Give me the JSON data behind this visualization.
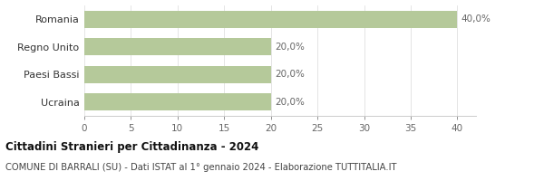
{
  "categories": [
    "Ucraina",
    "Paesi Bassi",
    "Regno Unito",
    "Romania"
  ],
  "values": [
    20.0,
    20.0,
    20.0,
    40.0
  ],
  "labels": [
    "20,0%",
    "20,0%",
    "20,0%",
    "40,0%"
  ],
  "bar_color": "#b5c99a",
  "background_color": "#ffffff",
  "xlim": [
    0,
    42
  ],
  "xticks": [
    0,
    5,
    10,
    15,
    20,
    25,
    30,
    35,
    40
  ],
  "title": "Cittadini Stranieri per Cittadinanza - 2024",
  "subtitle": "COMUNE DI BARRALI (SU) - Dati ISTAT al 1° gennaio 2024 - Elaborazione TUTTITALIA.IT",
  "title_fontsize": 8.5,
  "subtitle_fontsize": 7.2,
  "label_fontsize": 7.5,
  "tick_fontsize": 7.5,
  "ylabel_fontsize": 8,
  "bar_height": 0.62
}
